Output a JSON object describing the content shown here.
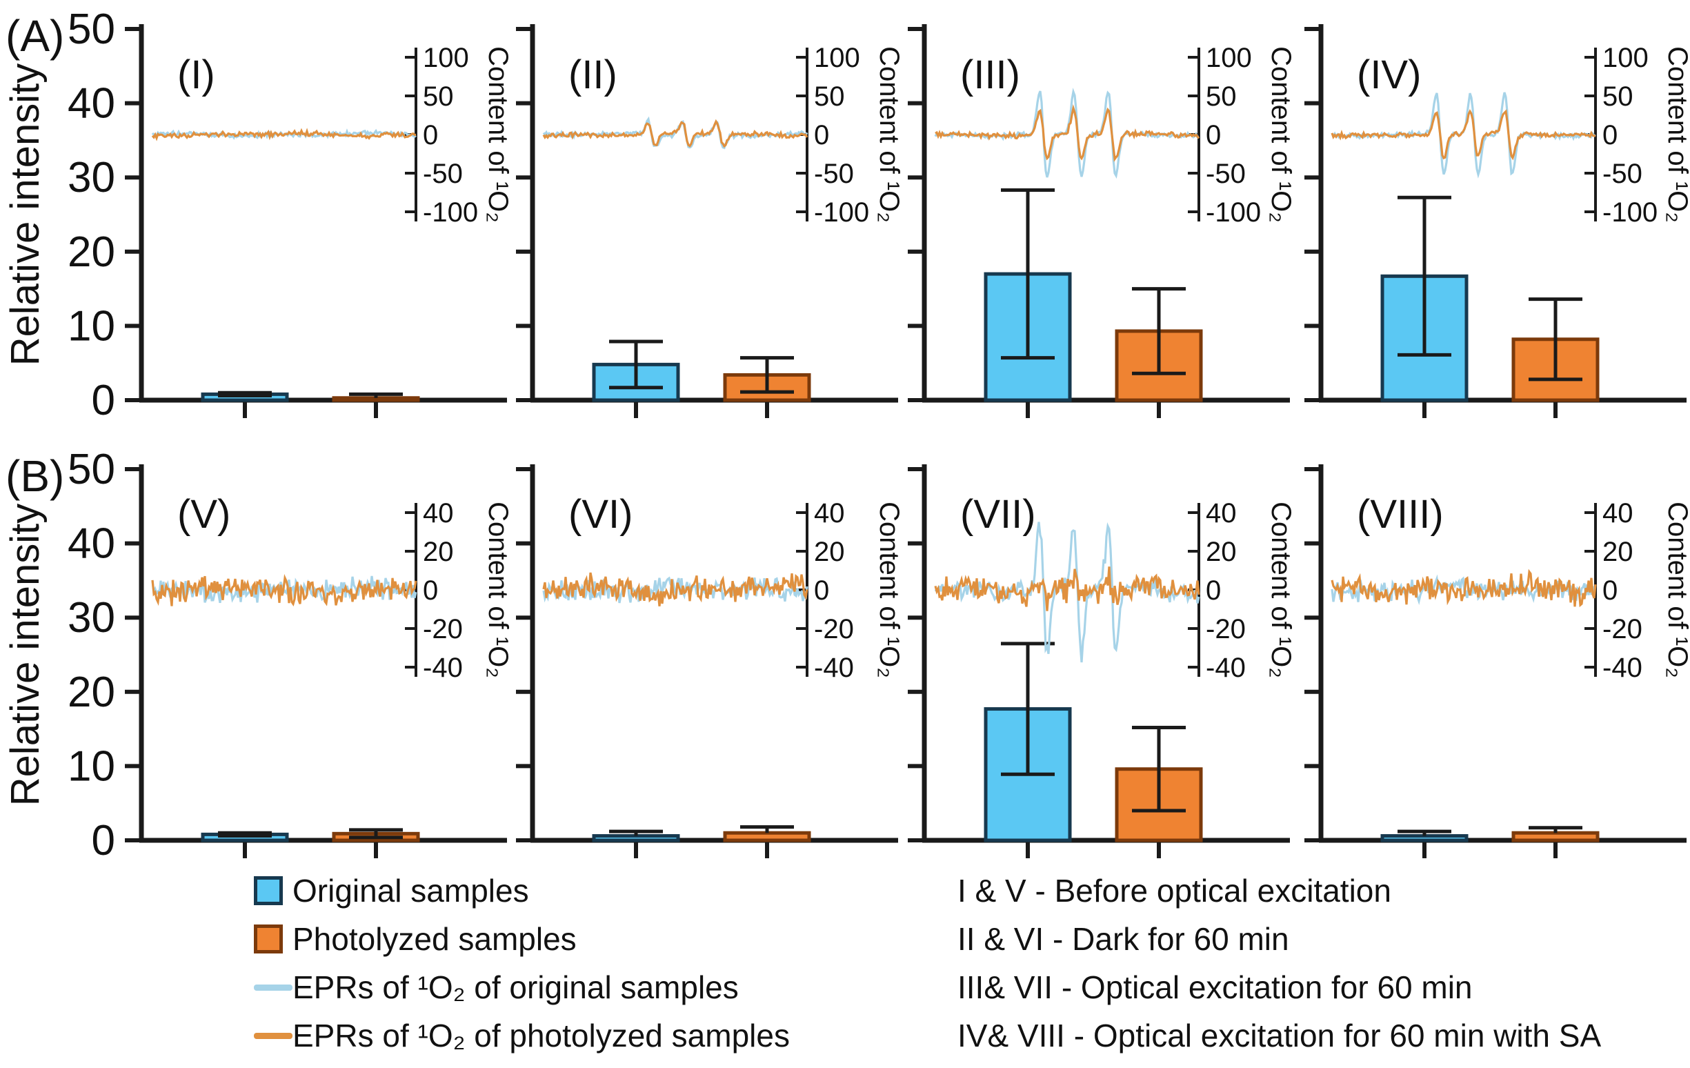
{
  "colors": {
    "bar_original_fill": "#5BC8F3",
    "bar_original_border": "#17394F",
    "bar_photolyzed_fill": "#EF8332",
    "bar_photolyzed_border": "#7C3A0B",
    "epr_original": "#A6D3E8",
    "epr_photolyzed": "#E0903E",
    "axis": "#1A1A1A",
    "text": "#111111"
  },
  "chart_data": {
    "type": "bar",
    "subtype": "grouped bars with EPR spectrum insets",
    "y_axis": {
      "label": "Relative intensity",
      "ticks": [
        0,
        10,
        20,
        30,
        40,
        50
      ],
      "range": [
        0,
        50
      ]
    },
    "series_names": [
      "Original samples",
      "Photolyzed samples"
    ],
    "epr_peak_positions": [
      0.41,
      0.54,
      0.67
    ],
    "rows": [
      {
        "row_label": "(A)",
        "inset": {
          "label": "Content of ¹O₂",
          "ticks": [
            100,
            50,
            0,
            -50,
            -100
          ],
          "range": [
            -100,
            100
          ]
        },
        "panels": [
          {
            "label": "(I)",
            "bars": {
              "original": {
                "value": 0.8,
                "err": 0.2
              },
              "photolyzed": {
                "value": 0.3,
                "err": 0.5
              }
            },
            "epr": {
              "original": {
                "noise": 3.5,
                "peak_amp": 0
              },
              "photolyzed": {
                "noise": 3.8,
                "peak_amp": 0
              }
            }
          },
          {
            "label": "(II)",
            "bars": {
              "original": {
                "value": 4.8,
                "err": 3.1
              },
              "photolyzed": {
                "value": 3.4,
                "err": 2.3
              }
            },
            "epr": {
              "original": {
                "noise": 3.5,
                "peak_amp": 17
              },
              "photolyzed": {
                "noise": 3.8,
                "peak_amp": 15
              }
            }
          },
          {
            "label": "(III)",
            "bars": {
              "original": {
                "value": 17.0,
                "err": 11.3
              },
              "photolyzed": {
                "value": 9.3,
                "err": 5.7
              }
            },
            "epr": {
              "original": {
                "noise": 3.5,
                "peak_amp": 55
              },
              "photolyzed": {
                "noise": 3.8,
                "peak_amp": 32
              }
            }
          },
          {
            "label": "(IV)",
            "bars": {
              "original": {
                "value": 16.7,
                "err": 10.6
              },
              "photolyzed": {
                "value": 8.2,
                "err": 5.4
              }
            },
            "epr": {
              "original": {
                "noise": 3.5,
                "peak_amp": 52
              },
              "photolyzed": {
                "noise": 3.8,
                "peak_amp": 30
              }
            }
          }
        ]
      },
      {
        "row_label": "(B)",
        "inset": {
          "label": "Content of ¹O₂",
          "ticks": [
            40,
            20,
            0,
            -20,
            -40
          ],
          "range": [
            -40,
            40
          ]
        },
        "panels": [
          {
            "label": "(V)",
            "bars": {
              "original": {
                "value": 0.8,
                "err": 0.2
              },
              "photolyzed": {
                "value": 0.9,
                "err": 0.5
              }
            },
            "epr": {
              "original": {
                "noise": 6.5,
                "peak_amp": 0
              },
              "photolyzed": {
                "noise": 8,
                "peak_amp": 0
              }
            }
          },
          {
            "label": "(VI)",
            "bars": {
              "original": {
                "value": 0.6,
                "err": 0.6
              },
              "photolyzed": {
                "value": 1.0,
                "err": 0.8
              }
            },
            "epr": {
              "original": {
                "noise": 6.5,
                "peak_amp": 0
              },
              "photolyzed": {
                "noise": 8,
                "peak_amp": 0
              }
            }
          },
          {
            "label": "(VII)",
            "bars": {
              "original": {
                "value": 17.7,
                "err": 8.8
              },
              "photolyzed": {
                "value": 9.6,
                "err": 5.6
              }
            },
            "epr": {
              "original": {
                "noise": 6.5,
                "peak_amp": 33
              },
              "photolyzed": {
                "noise": 8,
                "peak_amp": 5
              }
            }
          },
          {
            "label": "(VIII)",
            "bars": {
              "original": {
                "value": 0.6,
                "err": 0.6
              },
              "photolyzed": {
                "value": 1.0,
                "err": 0.7
              }
            },
            "epr": {
              "original": {
                "noise": 6.5,
                "peak_amp": 0
              },
              "photolyzed": {
                "noise": 8,
                "peak_amp": 0
              }
            }
          }
        ]
      }
    ]
  },
  "legend": {
    "items": [
      {
        "label": "Original samples",
        "shape": "square",
        "fill": "#5BC8F3",
        "border": "#17394F"
      },
      {
        "label": "Photolyzed samples",
        "shape": "square",
        "fill": "#EF8332",
        "border": "#7C3A0B"
      },
      {
        "label": "EPRs of ¹O₂ of original samples",
        "shape": "line",
        "fill": "#A6D3E8",
        "border": ""
      },
      {
        "label": "EPRs of ¹O₂ of photolyzed samples",
        "shape": "line",
        "fill": "#E0903E",
        "border": ""
      }
    ]
  },
  "captions": {
    "lines": [
      "I & V - Before optical excitation",
      "II & VI - Dark for 60 min",
      "III& VII - Optical excitation for 60 min",
      "IV& VIII - Optical excitation for 60 min with SA"
    ]
  }
}
